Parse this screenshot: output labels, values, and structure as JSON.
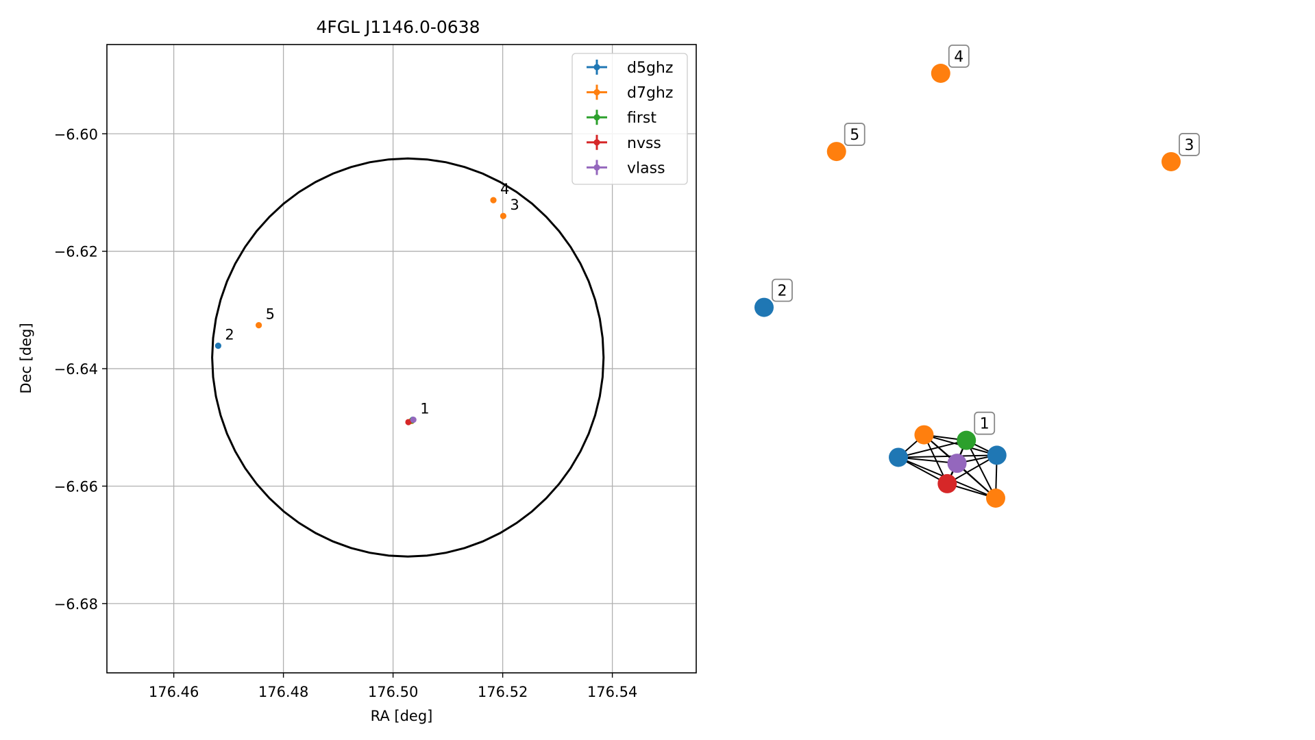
{
  "chart_data": [
    {
      "type": "scatter",
      "title": "4FGL J1146.0-0638",
      "xlabel": "RA [deg]",
      "ylabel": "Dec [deg]",
      "xlim": [
        176.4478,
        176.5553
      ],
      "ylim": [
        -6.6918,
        -6.5848
      ],
      "xticks": [
        176.46,
        176.48,
        176.5,
        176.52,
        176.54
      ],
      "xtick_labels": [
        "176.46",
        "176.48",
        "176.50",
        "176.52",
        "176.54"
      ],
      "yticks": [
        -6.6,
        -6.62,
        -6.64,
        -6.66,
        -6.68
      ],
      "ytick_labels": [
        "−6.60",
        "−6.62",
        "−6.64",
        "−6.66",
        "−6.68"
      ],
      "grid": true,
      "legend_position": "top-right",
      "circle": {
        "center": [
          176.5027,
          -6.6381
        ],
        "radius_x": 0.0357,
        "radius_y": 0.0339
      },
      "series": [
        {
          "name": "d5ghz",
          "color": "#1f77b4",
          "points": [
            {
              "x": 176.4681,
              "y": -6.6361,
              "label": "2"
            },
            {
              "x": 176.5036,
              "y": -6.6487,
              "label": ""
            }
          ]
        },
        {
          "name": "d7ghz",
          "color": "#ff7f0e",
          "points": [
            {
              "x": 176.5183,
              "y": -6.6113,
              "label": "4"
            },
            {
              "x": 176.5201,
              "y": -6.614,
              "label": "3"
            },
            {
              "x": 176.4755,
              "y": -6.6326,
              "label": "5"
            },
            {
              "x": 176.5034,
              "y": -6.6489,
              "label": ""
            }
          ]
        },
        {
          "name": "first",
          "color": "#2ca02c",
          "points": [
            {
              "x": 176.5035,
              "y": -6.6488,
              "label": ""
            }
          ]
        },
        {
          "name": "nvss",
          "color": "#d62728",
          "points": [
            {
              "x": 176.5028,
              "y": -6.6491,
              "label": ""
            }
          ]
        },
        {
          "name": "vlass",
          "color": "#9467bd",
          "points": [
            {
              "x": 176.5037,
              "y": -6.6487,
              "label": "1"
            }
          ]
        }
      ]
    },
    {
      "type": "network",
      "nodes": [
        {
          "id": "d7-4",
          "color": "#ff7f0e",
          "label": "4",
          "x": 0.434,
          "y": 0.0
        },
        {
          "id": "d7-5",
          "color": "#ff7f0e",
          "label": "5",
          "x": 0.178,
          "y": 0.184
        },
        {
          "id": "d7-3",
          "color": "#ff7f0e",
          "label": "3",
          "x": 1.0,
          "y": 0.208
        },
        {
          "id": "d5-2",
          "color": "#1f77b4",
          "label": "2",
          "x": 0.0,
          "y": 0.551
        },
        {
          "id": "first-1",
          "color": "#2ca02c",
          "label": "1",
          "x": 0.497,
          "y": 0.864
        },
        {
          "id": "d7-1",
          "color": "#ff7f0e",
          "label": "",
          "x": 0.393,
          "y": 0.851
        },
        {
          "id": "d5-1a",
          "color": "#1f77b4",
          "label": "",
          "x": 0.33,
          "y": 0.904
        },
        {
          "id": "d5-1b",
          "color": "#1f77b4",
          "label": "",
          "x": 0.572,
          "y": 0.899
        },
        {
          "id": "vlass-1",
          "color": "#9467bd",
          "label": "",
          "x": 0.474,
          "y": 0.918
        },
        {
          "id": "nvss-1",
          "color": "#d62728",
          "label": "",
          "x": 0.45,
          "y": 0.966
        },
        {
          "id": "d7-1b",
          "color": "#ff7f0e",
          "label": "",
          "x": 0.569,
          "y": 1.0
        }
      ],
      "edges": [
        [
          "d5-1a",
          "d7-1"
        ],
        [
          "d5-1a",
          "first-1"
        ],
        [
          "d5-1a",
          "vlass-1"
        ],
        [
          "d5-1a",
          "nvss-1"
        ],
        [
          "d5-1a",
          "d5-1b"
        ],
        [
          "d5-1a",
          "d7-1b"
        ],
        [
          "d7-1",
          "first-1"
        ],
        [
          "d7-1",
          "vlass-1"
        ],
        [
          "d7-1",
          "nvss-1"
        ],
        [
          "d7-1",
          "d5-1b"
        ],
        [
          "d7-1",
          "d7-1b"
        ],
        [
          "first-1",
          "vlass-1"
        ],
        [
          "first-1",
          "nvss-1"
        ],
        [
          "first-1",
          "d5-1b"
        ],
        [
          "first-1",
          "d7-1b"
        ],
        [
          "vlass-1",
          "nvss-1"
        ],
        [
          "vlass-1",
          "d5-1b"
        ],
        [
          "vlass-1",
          "d7-1b"
        ],
        [
          "nvss-1",
          "d5-1b"
        ],
        [
          "nvss-1",
          "d7-1b"
        ],
        [
          "d5-1b",
          "d7-1b"
        ]
      ]
    }
  ]
}
